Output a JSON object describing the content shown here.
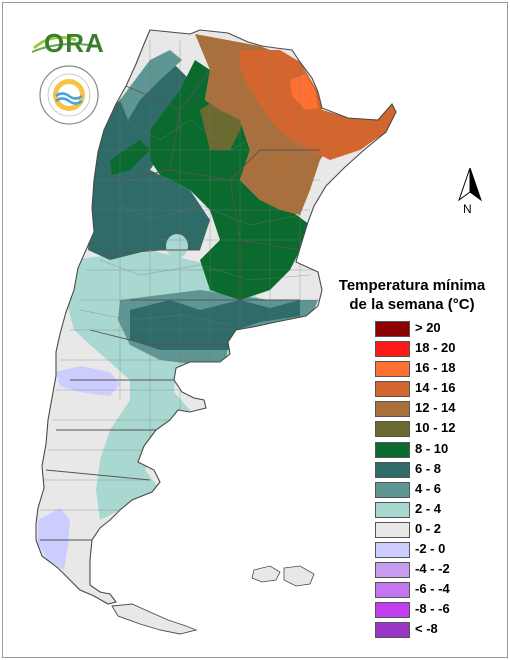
{
  "logos": {
    "ora_text": "ORA",
    "seal_icon": "argentina-weather-service-seal-icon"
  },
  "compass": {
    "label": "N",
    "icon": "north-arrow-icon"
  },
  "legend": {
    "title_line1": "Temperatura mínima",
    "title_line2": "de la semana (°C)",
    "items": [
      {
        "label": "> 20",
        "color": "#8b0000"
      },
      {
        "label": "18 - 20",
        "color": "#ff1a1a"
      },
      {
        "label": "16 - 18",
        "color": "#ff7033"
      },
      {
        "label": "14 - 16",
        "color": "#d2662e"
      },
      {
        "label": "12 - 14",
        "color": "#a9703d"
      },
      {
        "label": "10 - 12",
        "color": "#6b6a30"
      },
      {
        "label": "8 - 10",
        "color": "#0b6b2f"
      },
      {
        "label": "6 - 8",
        "color": "#2f6b68"
      },
      {
        "label": "4 - 6",
        "color": "#5f9592"
      },
      {
        "label": "2 - 4",
        "color": "#a8d8d0"
      },
      {
        "label": "0 - 2",
        "color": "#e8e8e8"
      },
      {
        "label": "-2 - 0",
        "color": "#ccccff"
      },
      {
        "label": "-4 - -2",
        "color": "#c89cf0"
      },
      {
        "label": "-6 - -4",
        "color": "#c476f0"
      },
      {
        "label": "-8 - -6",
        "color": "#c43cf0"
      },
      {
        "label": "< -8",
        "color": "#9a35c8"
      }
    ]
  },
  "map_colors": {
    "above_20": "#8b0000",
    "t18_20": "#ff1a1a",
    "t16_18": "#ff7033",
    "t14_16": "#d2662e",
    "t12_14": "#a9703d",
    "t10_12": "#6b6a30",
    "t8_10": "#0b6b2f",
    "t6_8": "#2f6b68",
    "t4_6": "#5f9592",
    "t2_4": "#a8d8d0",
    "t0_2": "#e8e8e8",
    "tm2_0": "#ccccff",
    "tm4_m2": "#c89cf0",
    "tm6_m4": "#c476f0",
    "tm8_m6": "#c43cf0",
    "below_m8": "#9a35c8"
  }
}
